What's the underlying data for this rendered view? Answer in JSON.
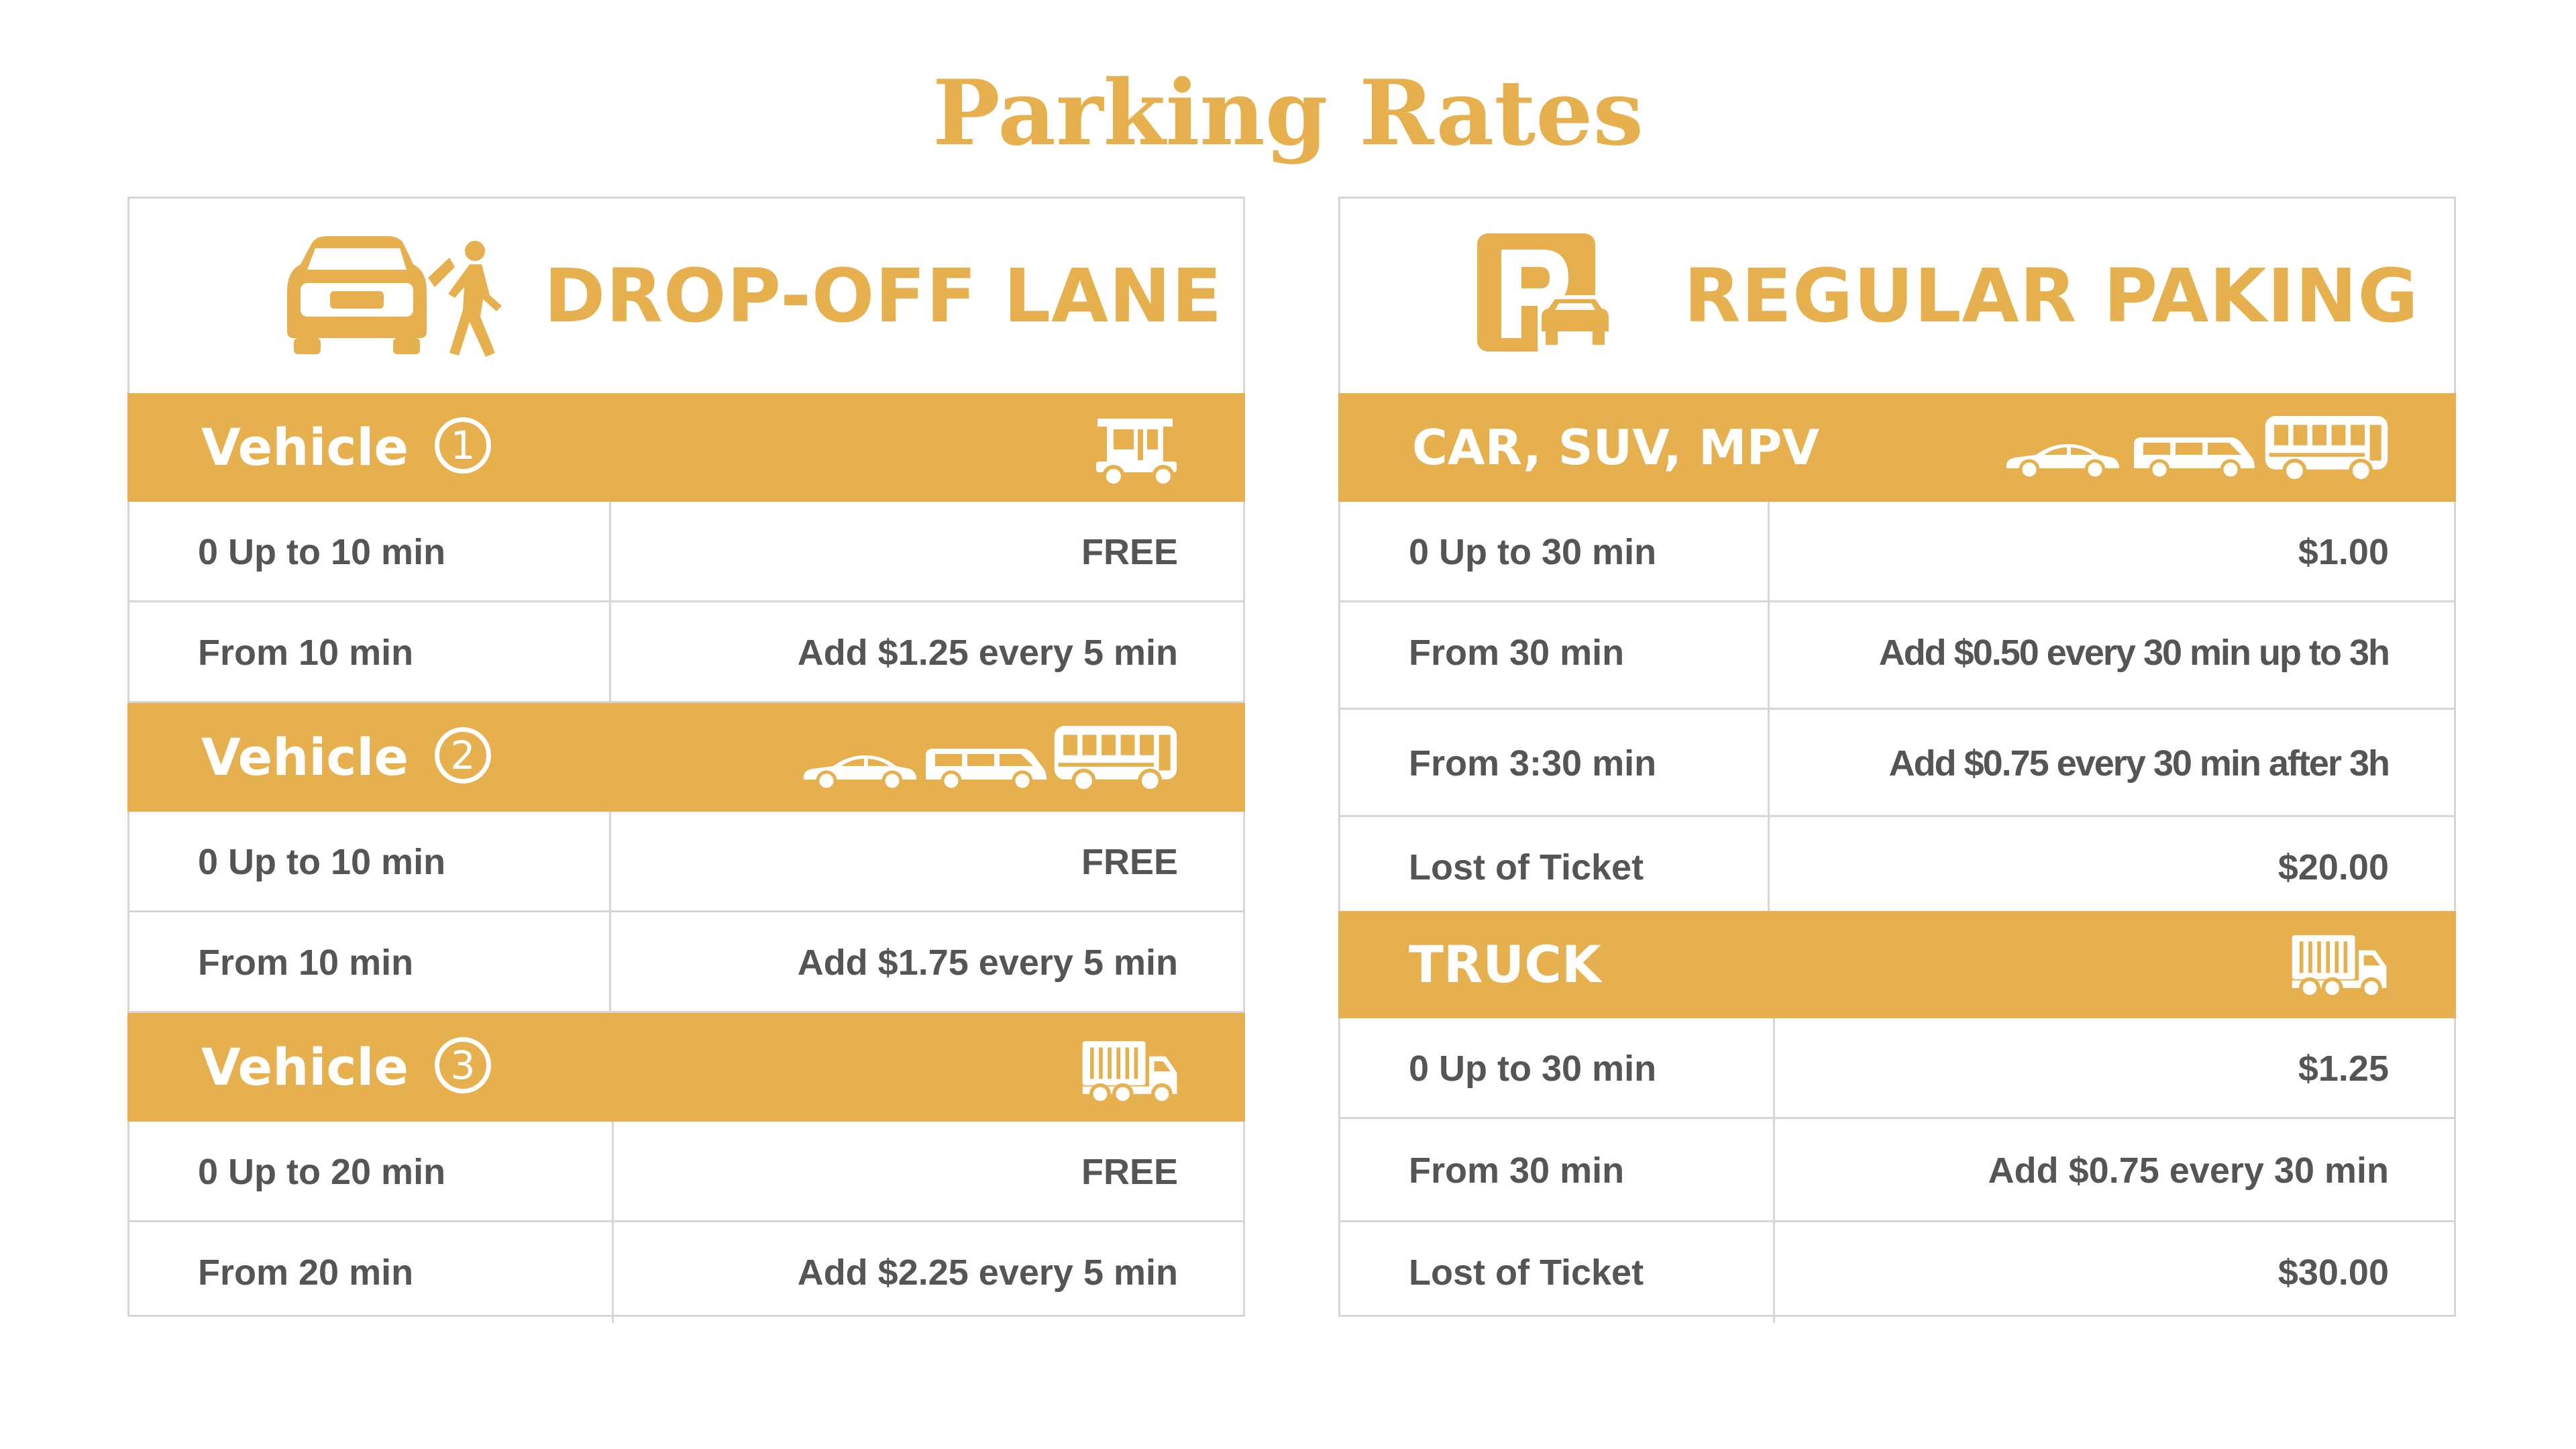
{
  "page": {
    "title": "Parking Rates"
  },
  "colors": {
    "accent": "#e6b04e",
    "text": "#555555",
    "border": "#d6d6d6"
  },
  "dropoff": {
    "title": "DROP-OFF LANE",
    "icon": "car-dropoff-pedestrian-icon",
    "groups": [
      {
        "label": "Vehicle",
        "number": "1",
        "icons": [
          "tuk-tuk-icon"
        ],
        "rows": [
          {
            "label": "0 Up to 10 min",
            "value": "FREE"
          },
          {
            "label": "From 10 min",
            "value": "Add $1.25 every 5 min"
          }
        ]
      },
      {
        "label": "Vehicle",
        "number": "2",
        "icons": [
          "sedan-icon",
          "van-icon",
          "bus-icon"
        ],
        "rows": [
          {
            "label": "0 Up to 10 min",
            "value": "FREE"
          },
          {
            "label": "From 10 min",
            "value": "Add $1.75 every 5 min"
          }
        ]
      },
      {
        "label": "Vehicle",
        "number": "3",
        "icons": [
          "truck-icon"
        ],
        "rows": [
          {
            "label": "0 Up to 20 min",
            "value": "FREE"
          },
          {
            "label": "From 20 min",
            "value": "Add $2.25 every 5 min"
          }
        ]
      }
    ]
  },
  "regular": {
    "title": "REGULAR PAKING",
    "icon": "parking-sign-icon",
    "groups": [
      {
        "label": "CAR, SUV, MPV",
        "icons": [
          "sedan-icon",
          "van-icon",
          "bus-icon"
        ],
        "rows": [
          {
            "label": "0 Up to 30 min",
            "value": "$1.00"
          },
          {
            "label": "From 30 min",
            "value": "Add $0.50 every 30 min up to 3h"
          },
          {
            "label": "From 3:30 min",
            "value": "Add $0.75 every 30 min after 3h"
          },
          {
            "label": "Lost of Ticket",
            "value": "$20.00"
          }
        ]
      },
      {
        "label": "TRUCK",
        "icons": [
          "truck-icon"
        ],
        "rows": [
          {
            "label": "0 Up to 30 min",
            "value": "$1.25"
          },
          {
            "label": "From 30 min",
            "value": "Add $0.75 every 30 min"
          },
          {
            "label": "Lost of Ticket",
            "value": "$30.00"
          }
        ]
      }
    ]
  }
}
